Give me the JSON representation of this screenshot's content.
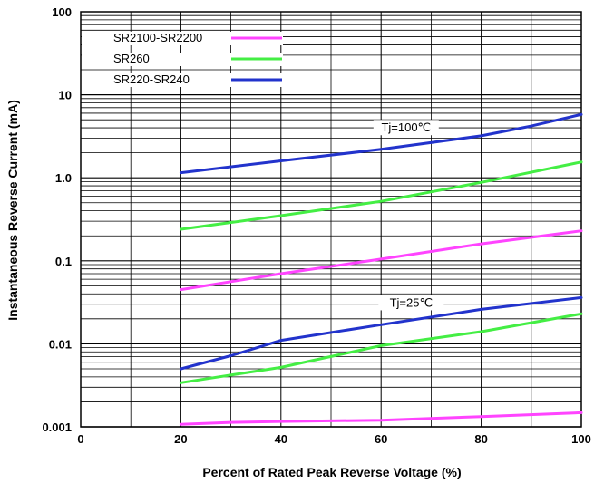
{
  "chart_data": {
    "type": "line",
    "title": "",
    "xlabel": "Percent of Rated Peak Reverse Voltage (%)",
    "ylabel": "Instantaneous Reverse Current (mA)",
    "xlim": [
      0,
      100
    ],
    "ylim": [
      0.001,
      100
    ],
    "yscale": "log",
    "grid": true,
    "legend_position": "top-left",
    "x_ticks": [
      {
        "value": 0,
        "label": "0"
      },
      {
        "value": 20,
        "label": "20"
      },
      {
        "value": 40,
        "label": "40"
      },
      {
        "value": 60,
        "label": "60"
      },
      {
        "value": 80,
        "label": "80"
      },
      {
        "value": 100,
        "label": "100"
      }
    ],
    "y_ticks": [
      {
        "value": 100,
        "label": "100"
      },
      {
        "value": 10,
        "label": "10"
      },
      {
        "value": 1,
        "label": "1.0"
      },
      {
        "value": 0.1,
        "label": "0.1"
      },
      {
        "value": 0.01,
        "label": "0.01"
      },
      {
        "value": 0.001,
        "label": "0.001"
      }
    ],
    "series": [
      {
        "name": "SR2100-SR2200",
        "color": "#ff44ff",
        "groups": [
          {
            "condition": "Tj=100℃",
            "x": [
              20,
              40,
              60,
              80,
              100
            ],
            "y": [
              0.045,
              0.07,
              0.105,
              0.16,
              0.23
            ]
          },
          {
            "condition": "Tj=25℃",
            "x": [
              20,
              30,
              40,
              60,
              80,
              100
            ],
            "y": [
              0.00107,
              0.00113,
              0.00116,
              0.0012,
              0.00133,
              0.00148
            ]
          }
        ]
      },
      {
        "name": "SR260",
        "color": "#44ee44",
        "groups": [
          {
            "condition": "Tj=100℃",
            "x": [
              20,
              40,
              60,
              80,
              100
            ],
            "y": [
              0.24,
              0.35,
              0.52,
              0.88,
              1.55
            ]
          },
          {
            "condition": "Tj=25℃",
            "x": [
              20,
              40,
              60,
              80,
              100
            ],
            "y": [
              0.0034,
              0.0052,
              0.0095,
              0.014,
              0.023
            ]
          }
        ]
      },
      {
        "name": "SR220-SR240",
        "color": "#2233cc",
        "groups": [
          {
            "condition": "Tj=100℃",
            "x": [
              20,
              40,
              60,
              80,
              90,
              100
            ],
            "y": [
              1.15,
              1.6,
              2.2,
              3.2,
              4.2,
              5.8
            ]
          },
          {
            "condition": "Tj=25℃",
            "x": [
              20,
              30,
              40,
              60,
              80,
              100
            ],
            "y": [
              0.005,
              0.0072,
              0.011,
              0.017,
              0.026,
              0.036
            ]
          }
        ]
      }
    ],
    "annotations": [
      {
        "text": "Tj=100℃",
        "x": 65,
        "y": 3.6
      },
      {
        "text": "Tj=25℃",
        "x": 66,
        "y": 0.028
      }
    ]
  }
}
